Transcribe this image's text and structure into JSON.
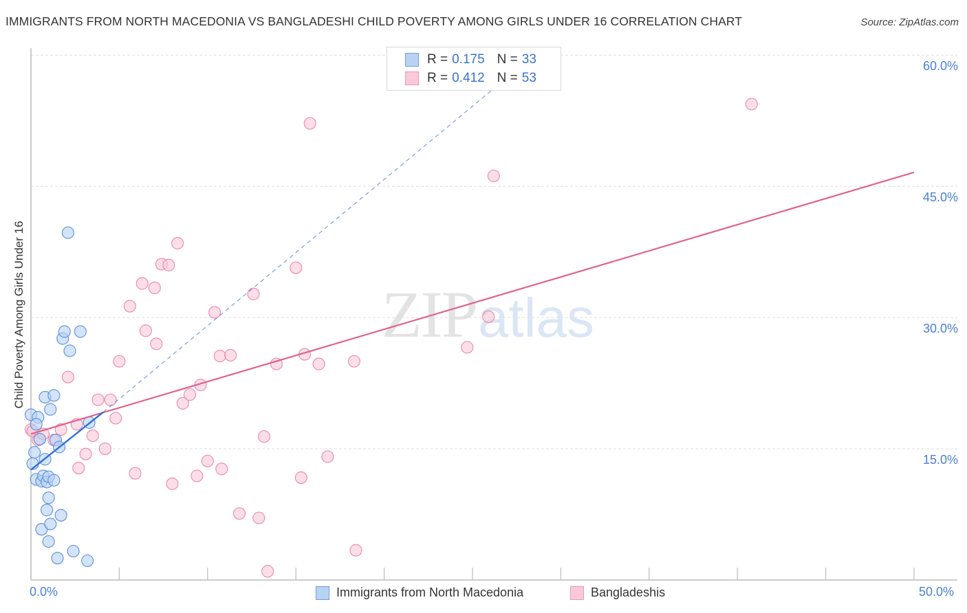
{
  "header": {
    "title": "IMMIGRANTS FROM NORTH MACEDONIA VS BANGLADESHI CHILD POVERTY AMONG GIRLS UNDER 16 CORRELATION CHART",
    "source": "Source: ZipAtlas.com"
  },
  "watermark": {
    "zip": "ZIP",
    "atlas": "atlas"
  },
  "colors": {
    "series1_fill": "#b8d2f4",
    "series1_stroke": "#5b8fdc",
    "series1_line": "#2f6fd6",
    "series2_fill": "#f9c9d8",
    "series2_stroke": "#e68aa8",
    "series2_line": "#e0628c",
    "tick_label": "#4a7fd4",
    "grid": "#dddddd"
  },
  "legend_box": {
    "rows": [
      {
        "r_label": "R =",
        "r_value": "0.175",
        "n_label": "N =",
        "n_value": "33"
      },
      {
        "r_label": "R =",
        "r_value": "0.412",
        "n_label": "N =",
        "n_value": "53"
      }
    ]
  },
  "bottom_legend": {
    "items": [
      {
        "label": "Immigrants from North Macedonia"
      },
      {
        "label": "Bangladeshis"
      }
    ]
  },
  "axes": {
    "ylabel": "Child Poverty Among Girls Under 16",
    "y_ticks": [
      "60.0%",
      "45.0%",
      "30.0%",
      "15.0%"
    ],
    "x_ticks": [
      "0.0%",
      "50.0%"
    ]
  },
  "chart_data": {
    "type": "scatter",
    "title": "IMMIGRANTS FROM NORTH MACEDONIA VS BANGLADESHI CHILD POVERTY AMONG GIRLS UNDER 16 CORRELATION CHART",
    "xlabel": "",
    "ylabel": "Child Poverty Among Girls Under 16",
    "xlim": [
      0,
      50
    ],
    "ylim": [
      0,
      62
    ],
    "x_tick_labels": [
      "0.0%",
      "50.0%"
    ],
    "y_tick_labels": [
      "15.0%",
      "30.0%",
      "45.0%",
      "60.0%"
    ],
    "grid": true,
    "legend_position": "bottom",
    "series": [
      {
        "name": "Immigrants from North Macedonia",
        "R": 0.175,
        "N": 33,
        "trend": {
          "x0": 0.0,
          "y0": 12.6,
          "x1": 4.1,
          "y1": 19.2,
          "extended_to": {
            "x": 27.0,
            "y": 57.5
          }
        },
        "points": [
          [
            0.0,
            18.9
          ],
          [
            0.1,
            13.3
          ],
          [
            0.2,
            14.6
          ],
          [
            0.3,
            11.5
          ],
          [
            0.4,
            18.6
          ],
          [
            0.5,
            16.1
          ],
          [
            0.6,
            11.3
          ],
          [
            0.7,
            11.9
          ],
          [
            0.8,
            13.8
          ],
          [
            0.9,
            11.2
          ],
          [
            0.9,
            8.0
          ],
          [
            0.6,
            5.8
          ],
          [
            0.8,
            20.9
          ],
          [
            1.0,
            11.8
          ],
          [
            1.0,
            9.4
          ],
          [
            1.0,
            4.4
          ],
          [
            1.1,
            19.5
          ],
          [
            1.1,
            6.4
          ],
          [
            1.3,
            21.1
          ],
          [
            1.3,
            11.4
          ],
          [
            1.4,
            16.0
          ],
          [
            1.5,
            2.5
          ],
          [
            1.6,
            15.2
          ],
          [
            1.7,
            7.4
          ],
          [
            1.8,
            27.6
          ],
          [
            1.9,
            28.4
          ],
          [
            2.1,
            39.7
          ],
          [
            2.2,
            26.2
          ],
          [
            2.4,
            3.3
          ],
          [
            2.8,
            28.4
          ],
          [
            3.2,
            2.2
          ],
          [
            3.3,
            18.0
          ],
          [
            0.3,
            17.8
          ]
        ]
      },
      {
        "name": "Bangladeshis",
        "R": 0.412,
        "N": 53,
        "trend": {
          "x0": 0.0,
          "y0": 16.7,
          "x1": 50.0,
          "y1": 46.6
        },
        "points": [
          [
            0.0,
            17.2
          ],
          [
            0.1,
            17.0
          ],
          [
            0.4,
            16.0
          ],
          [
            0.7,
            16.7
          ],
          [
            1.3,
            16.0
          ],
          [
            1.7,
            17.2
          ],
          [
            2.1,
            23.2
          ],
          [
            2.7,
            12.8
          ],
          [
            2.6,
            17.8
          ],
          [
            3.1,
            14.4
          ],
          [
            3.5,
            16.5
          ],
          [
            3.8,
            20.6
          ],
          [
            4.2,
            15.0
          ],
          [
            4.5,
            20.6
          ],
          [
            4.8,
            18.5
          ],
          [
            5.0,
            25.0
          ],
          [
            5.6,
            31.3
          ],
          [
            5.9,
            12.2
          ],
          [
            6.3,
            33.9
          ],
          [
            6.5,
            28.5
          ],
          [
            7.0,
            33.4
          ],
          [
            7.1,
            27.0
          ],
          [
            7.4,
            36.1
          ],
          [
            7.8,
            36.0
          ],
          [
            8.0,
            11.0
          ],
          [
            8.3,
            38.5
          ],
          [
            8.6,
            20.2
          ],
          [
            9.0,
            21.2
          ],
          [
            9.4,
            11.9
          ],
          [
            9.6,
            22.3
          ],
          [
            10.0,
            13.6
          ],
          [
            10.4,
            30.6
          ],
          [
            10.7,
            25.6
          ],
          [
            10.8,
            12.7
          ],
          [
            11.3,
            25.7
          ],
          [
            11.8,
            7.6
          ],
          [
            12.6,
            32.7
          ],
          [
            12.9,
            7.1
          ],
          [
            13.2,
            16.4
          ],
          [
            13.4,
            1.0
          ],
          [
            13.9,
            24.7
          ],
          [
            15.0,
            35.7
          ],
          [
            15.3,
            11.7
          ],
          [
            15.5,
            25.8
          ],
          [
            15.8,
            52.2
          ],
          [
            16.3,
            24.7
          ],
          [
            16.8,
            14.1
          ],
          [
            18.4,
            3.4
          ],
          [
            18.3,
            25.0
          ],
          [
            24.7,
            26.6
          ],
          [
            25.9,
            30.1
          ],
          [
            26.2,
            46.2
          ],
          [
            40.8,
            54.4
          ]
        ]
      }
    ]
  }
}
